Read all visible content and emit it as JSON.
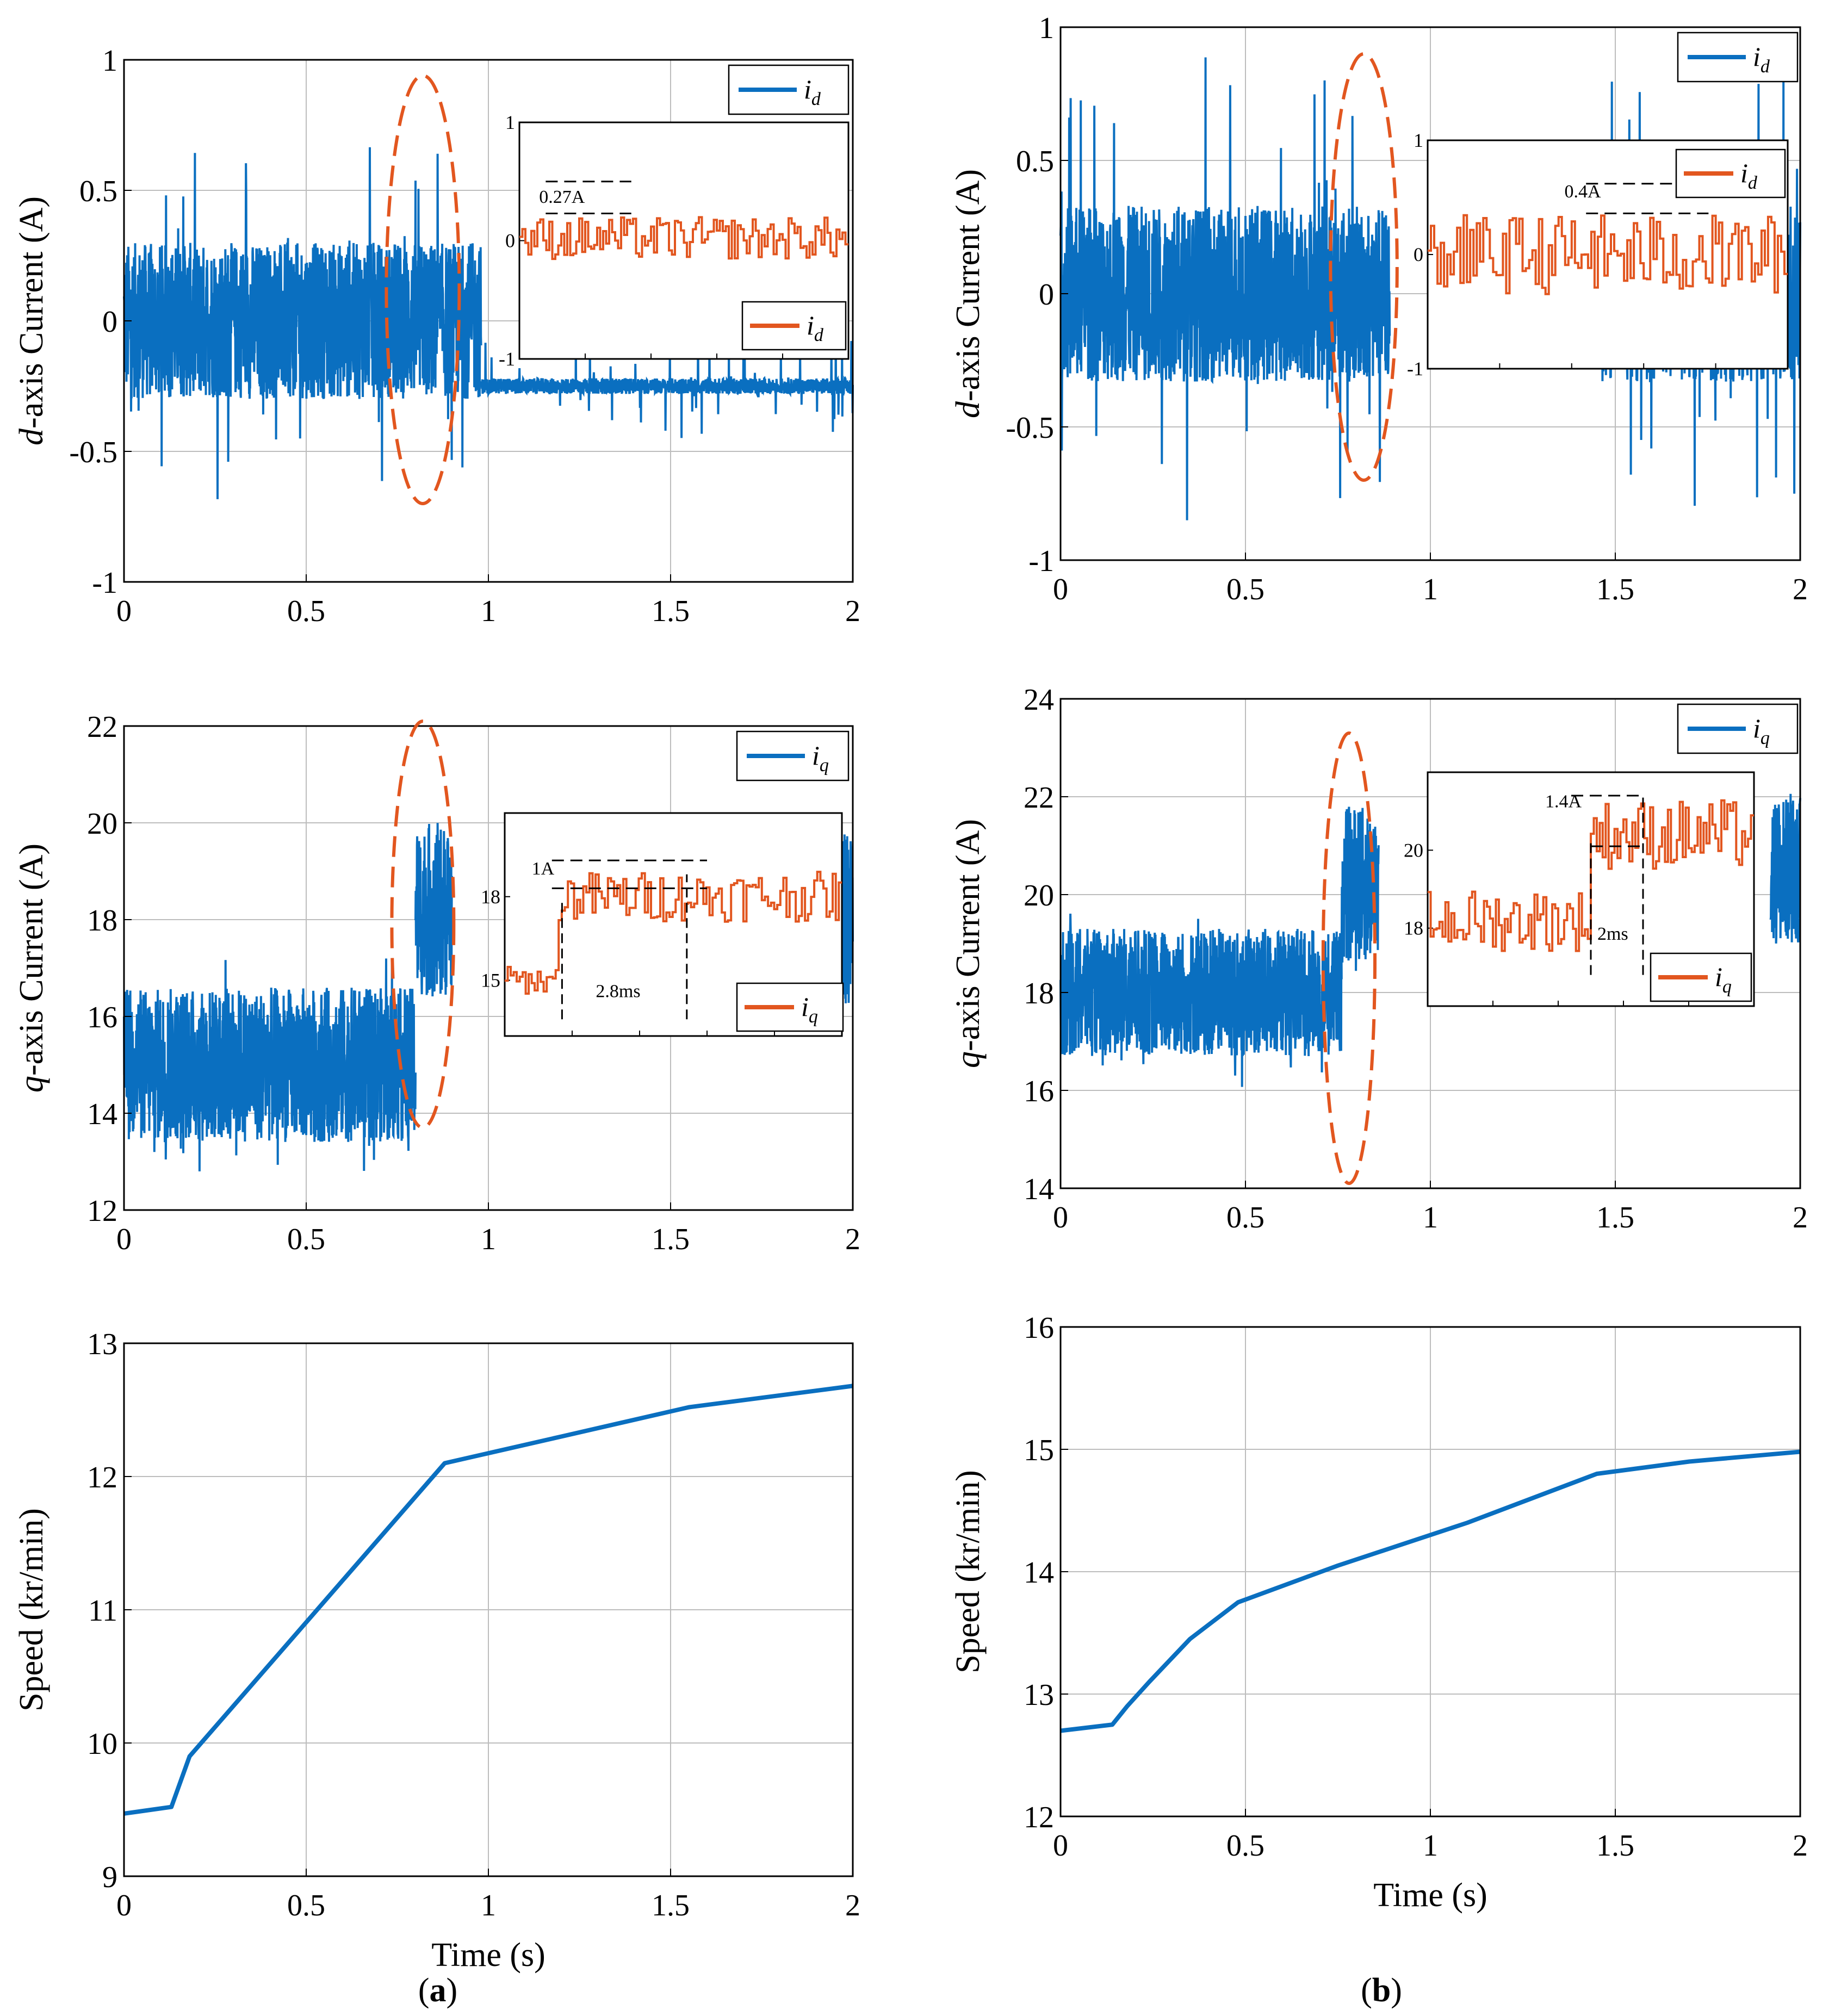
{
  "colors": {
    "blue": "#0a6fc0",
    "orange": "#e2561f",
    "grid": "#bdbdbd",
    "ellipse": "#e2561f"
  },
  "panels": [
    {
      "label_open": "(",
      "letter": "a",
      "label_close": ")"
    },
    {
      "label_open": "(",
      "letter": "b",
      "label_close": ")"
    }
  ],
  "chart_data": [
    {
      "id": "a-d",
      "type": "line",
      "ylabel_italic": "d",
      "ylabel_rest": "-axis Current (A)",
      "xlabel": "",
      "xlim": [
        0,
        2
      ],
      "ylim": [
        -1,
        1
      ],
      "xticks": [
        "0",
        "0.5",
        "1",
        "1.5",
        "2"
      ],
      "yticks": [
        "-1",
        "-0.5",
        "0",
        "0.5",
        "1"
      ],
      "series": [
        {
          "name": "i",
          "subscript": "d",
          "segments": [
            {
              "x0": 0.0,
              "x1": 0.98,
              "center": 0.0,
              "band": 0.3,
              "spike": 0.7
            },
            {
              "x0": 0.98,
              "x1": 2.0,
              "center": -0.25,
              "band": 0.03,
              "spike": 0.2
            }
          ]
        }
      ],
      "legend": {
        "name": "i",
        "subscript": "d",
        "position": "top-right"
      },
      "ellipse": {
        "cx": 0.82,
        "cy": 0.12,
        "rx": 0.1,
        "ry": 0.82
      },
      "inset": {
        "xlim": [
          0,
          1
        ],
        "ylim": [
          -1,
          1
        ],
        "yticks": [
          "-1",
          "0",
          "1"
        ],
        "series": [
          {
            "name": "i",
            "subscript": "d"
          }
        ],
        "levels": [
          {
            "x0": 0,
            "x1": 1,
            "center": 0.02,
            "amp": 0.18
          }
        ],
        "annotations": [
          {
            "text": "0.27A",
            "x": 0.06,
            "y": 0.32
          }
        ],
        "hlines": [
          {
            "x0": 0.08,
            "x1": 0.34,
            "y": 0.5
          },
          {
            "x0": 0.08,
            "x1": 0.34,
            "y": 0.23
          }
        ],
        "vlines": []
      }
    },
    {
      "id": "a-q",
      "type": "line",
      "ylabel_italic": "q",
      "ylabel_rest": "-axis Current (A)",
      "xlabel": "",
      "xlim": [
        0,
        2
      ],
      "ylim": [
        12,
        22
      ],
      "xticks": [
        "0",
        "0.5",
        "1",
        "1.5",
        "2"
      ],
      "yticks": [
        "12",
        "14",
        "16",
        "18",
        "20",
        "22"
      ],
      "series": [
        {
          "name": "i",
          "subscript": "q",
          "segments": [
            {
              "x0": 0.0,
              "x1": 0.8,
              "center": 15.0,
              "band": 1.6,
              "spike": 2.3
            },
            {
              "x0": 0.8,
              "x1": 0.9,
              "center": 18.2,
              "band": 1.8,
              "spike": 2.0
            },
            {
              "x0": 1.97,
              "x1": 2.0,
              "center": 18.0,
              "band": 1.8,
              "spike": 2.0
            }
          ]
        }
      ],
      "legend": {
        "name": "i",
        "subscript": "q",
        "position": "top-right"
      },
      "ellipse": {
        "cx": 0.82,
        "cy": 17.9,
        "rx": 0.085,
        "ry": 4.2
      },
      "inset": {
        "xlim": [
          0,
          1
        ],
        "ylim": [
          13,
          21
        ],
        "yticks": [
          "15",
          "18"
        ],
        "series": [
          {
            "name": "i",
            "subscript": "q"
          }
        ],
        "levels": [
          {
            "x0": 0,
            "x1": 0.16,
            "center": 15.0,
            "amp": 0.5
          },
          {
            "x0": 0.16,
            "x1": 1.0,
            "center": 18.0,
            "amp": 0.9
          }
        ],
        "annotations": [
          {
            "text": "1A",
            "x": 0.08,
            "y": 18.8
          },
          {
            "text": "2.8ms",
            "x": 0.27,
            "y": 14.4
          }
        ],
        "hlines": [
          {
            "x0": 0.14,
            "x1": 0.6,
            "y": 19.3
          },
          {
            "x0": 0.14,
            "x1": 0.6,
            "y": 18.3
          }
        ],
        "vlines": [
          {
            "x": 0.17,
            "y0": 13.6,
            "y1": 17.8
          },
          {
            "x": 0.54,
            "y0": 13.6,
            "y1": 18.8
          }
        ]
      }
    },
    {
      "id": "a-s",
      "type": "line",
      "ylabel_italic": "",
      "ylabel_rest": "Speed (kr/min)",
      "xlabel": "Time (s)",
      "xlim": [
        0,
        2
      ],
      "ylim": [
        9,
        13
      ],
      "xticks": [
        "0",
        "0.5",
        "1",
        "1.5",
        "2"
      ],
      "yticks": [
        "9",
        "10",
        "11",
        "12",
        "13"
      ],
      "series": [
        {
          "name": "speed",
          "x": [
            0,
            0.13,
            0.18,
            0.88,
            1.2,
            1.55,
            2.0
          ],
          "y": [
            9.47,
            9.52,
            9.9,
            12.1,
            12.3,
            12.52,
            12.68
          ]
        }
      ]
    },
    {
      "id": "b-d",
      "type": "line",
      "ylabel_italic": "d",
      "ylabel_rest": "-axis Current (A)",
      "xlabel": "",
      "xlim": [
        0,
        2
      ],
      "ylim": [
        -1,
        1
      ],
      "xticks": [
        "0",
        "0.5",
        "1",
        "1.5",
        "2"
      ],
      "yticks": [
        "-1",
        "-0.5",
        "0",
        "0.5",
        "1"
      ],
      "series": [
        {
          "name": "i",
          "subscript": "d",
          "segments": [
            {
              "x0": 0.0,
              "x1": 0.89,
              "center": 0.0,
              "band": 0.33,
              "spike": 0.9
            },
            {
              "x0": 1.46,
              "x1": 2.0,
              "center": 0.0,
              "band": 0.33,
              "spike": 0.8
            }
          ]
        }
      ],
      "legend": {
        "name": "i",
        "subscript": "d",
        "position": "top-right"
      },
      "ellipse": {
        "cx": 0.82,
        "cy": 0.1,
        "rx": 0.09,
        "ry": 0.8
      },
      "inset": {
        "xlim": [
          0,
          1
        ],
        "ylim": [
          -1,
          1
        ],
        "yticks": [
          "-1",
          "0",
          "1"
        ],
        "series": [
          {
            "name": "i",
            "subscript": "d"
          }
        ],
        "levels": [
          {
            "x0": 0,
            "x1": 1,
            "center": 0.0,
            "amp": 0.35
          }
        ],
        "annotations": [
          {
            "text": "0.4A",
            "x": 0.38,
            "y": 0.5
          }
        ],
        "hlines": [
          {
            "x0": 0.44,
            "x1": 0.78,
            "y": 0.62
          },
          {
            "x0": 0.44,
            "x1": 0.78,
            "y": 0.36
          }
        ],
        "vlines": []
      }
    },
    {
      "id": "b-q",
      "type": "line",
      "ylabel_italic": "q",
      "ylabel_rest": "-axis Current (A)",
      "xlabel": "",
      "xlim": [
        0,
        2
      ],
      "ylim": [
        14,
        24
      ],
      "xticks": [
        "0",
        "0.5",
        "1",
        "1.5",
        "2"
      ],
      "yticks": [
        "14",
        "16",
        "18",
        "20",
        "22",
        "24"
      ],
      "series": [
        {
          "name": "i",
          "subscript": "q",
          "segments": [
            {
              "x0": 0.0,
              "x1": 0.76,
              "center": 18.0,
              "band": 1.3,
              "spike": 2.0
            },
            {
              "x0": 0.76,
              "x1": 0.86,
              "center": 20.2,
              "band": 1.6,
              "spike": 1.8
            },
            {
              "x0": 1.92,
              "x1": 2.0,
              "center": 20.5,
              "band": 1.5,
              "spike": 1.8
            }
          ]
        }
      ],
      "legend": {
        "name": "i",
        "subscript": "q",
        "position": "top-right"
      },
      "ellipse": {
        "cx": 0.78,
        "cy": 18.7,
        "rx": 0.07,
        "ry": 4.6
      },
      "inset": {
        "xlim": [
          0,
          1
        ],
        "ylim": [
          16,
          22
        ],
        "yticks": [
          "18",
          "20"
        ],
        "series": [
          {
            "name": "i",
            "subscript": "q"
          }
        ],
        "levels": [
          {
            "x0": 0,
            "x1": 0.5,
            "center": 18.2,
            "amp": 0.8
          },
          {
            "x0": 0.5,
            "x1": 1.0,
            "center": 20.4,
            "amp": 0.9
          }
        ],
        "annotations": [
          {
            "text": "1.4A",
            "x": 0.36,
            "y": 21.1
          },
          {
            "text": "2ms",
            "x": 0.52,
            "y": 17.7
          }
        ],
        "hlines": [
          {
            "x0": 0.44,
            "x1": 0.66,
            "y": 21.4
          },
          {
            "x0": 0.5,
            "x1": 0.66,
            "y": 20.1
          }
        ],
        "vlines": [
          {
            "x": 0.5,
            "y0": 16.8,
            "y1": 20.3
          },
          {
            "x": 0.66,
            "y0": 16.8,
            "y1": 21.4
          }
        ]
      }
    },
    {
      "id": "b-s",
      "type": "line",
      "ylabel_italic": "",
      "ylabel_rest": "Speed (kr/min)",
      "xlabel": "Time (s)",
      "xlim": [
        0,
        2
      ],
      "ylim": [
        12,
        16
      ],
      "xticks": [
        "0",
        "0.5",
        "1",
        "1.5",
        "2"
      ],
      "yticks": [
        "12",
        "13",
        "14",
        "15",
        "16"
      ],
      "series": [
        {
          "name": "speed",
          "x": [
            0,
            0.14,
            0.18,
            0.24,
            0.35,
            0.48,
            0.75,
            1.1,
            1.45,
            1.7,
            2.0
          ],
          "y": [
            12.7,
            12.75,
            12.9,
            13.1,
            13.45,
            13.75,
            14.05,
            14.4,
            14.8,
            14.9,
            14.98
          ]
        }
      ]
    }
  ]
}
